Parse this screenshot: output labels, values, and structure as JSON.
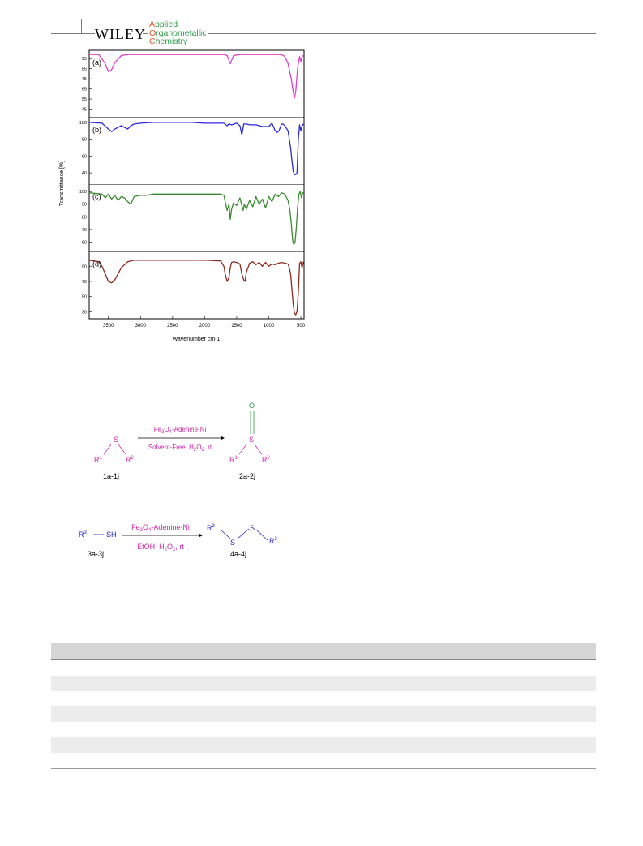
{
  "header": {
    "publisher": "WILEY",
    "journal": [
      {
        "initial": "A",
        "rest": "pplied"
      },
      {
        "initial": "O",
        "rest": "rganometallic"
      },
      {
        "initial": "C",
        "rest": "hemistry"
      }
    ]
  },
  "chart_data": {
    "type": "line",
    "xlabel": "Wavenumber cm-1",
    "ylabel": "Transmittance [%]",
    "xticks": [
      3500,
      3000,
      2500,
      2000,
      1500,
      1000,
      500
    ],
    "xlim": [
      3800,
      450
    ],
    "panels": [
      {
        "label": "(a)",
        "color": "#e040c8",
        "yticks": [
          95,
          85,
          75,
          65,
          55,
          45
        ],
        "ylim": [
          40,
          100
        ],
        "x": [
          3800,
          3650,
          3550,
          3500,
          3450,
          3400,
          3300,
          3200,
          1700,
          1650,
          1600,
          1550,
          1450,
          800,
          750,
          700,
          650,
          620,
          600,
          580,
          550,
          520,
          500,
          480,
          460
        ],
        "y": [
          99,
          99,
          90,
          82,
          84,
          91,
          98,
          99,
          99,
          98,
          90,
          98,
          99,
          99,
          97,
          90,
          75,
          62,
          56,
          62,
          86,
          97,
          92,
          97,
          98
        ]
      },
      {
        "label": "(b)",
        "color": "#2a2ad8",
        "yticks": [
          100,
          80,
          60,
          40
        ],
        "ylim": [
          30,
          102
        ],
        "x": [
          3800,
          3600,
          3500,
          3450,
          3400,
          3300,
          3200,
          3150,
          3100,
          3000,
          2800,
          2500,
          2200,
          2000,
          1700,
          1650,
          1620,
          1580,
          1500,
          1450,
          1420,
          1390,
          1350,
          1300,
          1200,
          1100,
          1000,
          950,
          900,
          870,
          840,
          800,
          780,
          750,
          700,
          660,
          640,
          620,
          600,
          580,
          560,
          540,
          520,
          500,
          480,
          460
        ],
        "y": [
          100,
          99,
          92,
          89,
          92,
          96,
          92,
          96,
          98,
          99,
          100,
          100,
          100,
          99,
          99,
          96,
          98,
          97,
          99,
          96,
          85,
          98,
          98,
          97,
          97,
          95,
          95,
          99,
          90,
          88,
          90,
          98,
          98,
          96,
          90,
          70,
          55,
          42,
          38,
          38,
          40,
          80,
          97,
          90,
          96,
          98
        ]
      },
      {
        "label": "(c)",
        "color": "#3a8a30",
        "yticks": [
          100,
          90,
          80,
          70,
          60
        ],
        "ylim": [
          55,
          103
        ],
        "x": [
          3800,
          3600,
          3550,
          3500,
          3450,
          3400,
          3350,
          3300,
          3250,
          3200,
          3150,
          3100,
          3000,
          2900,
          2800,
          2600,
          2400,
          2200,
          2000,
          1750,
          1700,
          1680,
          1650,
          1620,
          1600,
          1580,
          1550,
          1500,
          1450,
          1400,
          1380,
          1350,
          1300,
          1250,
          1200,
          1150,
          1100,
          1050,
          1000,
          950,
          900,
          850,
          800,
          750,
          700,
          670,
          650,
          630,
          610,
          590,
          570,
          550,
          530,
          510,
          490,
          470,
          460
        ],
        "y": [
          99,
          98,
          95,
          98,
          94,
          97,
          93,
          96,
          95,
          92,
          90,
          96,
          97,
          97,
          98,
          98,
          98,
          98,
          98,
          98,
          97,
          92,
          85,
          90,
          78,
          86,
          91,
          89,
          95,
          85,
          90,
          86,
          93,
          88,
          96,
          90,
          94,
          87,
          96,
          92,
          98,
          96,
          99,
          98,
          93,
          85,
          75,
          62,
          58,
          60,
          72,
          88,
          98,
          100,
          95,
          99,
          99
        ]
      },
      {
        "label": "(d)",
        "color": "#8a2a22",
        "yticks": [
          90,
          70,
          50,
          30
        ],
        "ylim": [
          25,
          105
        ],
        "x": [
          3800,
          3650,
          3600,
          3550,
          3500,
          3450,
          3400,
          3350,
          3300,
          3200,
          3100,
          3000,
          2800,
          2500,
          2200,
          2000,
          1750,
          1700,
          1680,
          1650,
          1620,
          1600,
          1580,
          1550,
          1500,
          1450,
          1420,
          1390,
          1370,
          1350,
          1300,
          1250,
          1200,
          1150,
          1100,
          1050,
          1000,
          950,
          900,
          850,
          800,
          750,
          700,
          680,
          660,
          640,
          620,
          600,
          580,
          560,
          540,
          520,
          500,
          480,
          460
        ],
        "y": [
          98,
          96,
          90,
          80,
          70,
          68,
          72,
          80,
          88,
          96,
          98,
          98,
          98,
          98,
          98,
          98,
          97,
          90,
          80,
          70,
          75,
          88,
          95,
          96,
          95,
          93,
          80,
          72,
          70,
          82,
          94,
          96,
          92,
          95,
          90,
          95,
          90,
          93,
          92,
          94,
          95,
          94,
          93,
          88,
          80,
          60,
          40,
          28,
          26,
          30,
          55,
          94,
          96,
          88,
          96
        ]
      }
    ]
  },
  "schemes": {
    "scheme1": {
      "catalyst": "Fe3O4-Adenine-Ni",
      "conditions": "Solvent-Free, H2O2, rt",
      "reactant_label": "1a-1j",
      "product_label": "2a-2j",
      "atom_s": "S",
      "atom_o": "O",
      "r1": "R",
      "r2": "R",
      "sup1": "1",
      "sup2": "2"
    },
    "scheme2": {
      "catalyst": "Fe3O4-Adenine-Ni",
      "conditions": "EtOH, H2O2, rt",
      "reactant_label": "3a-3j",
      "product_label": "4a-4j",
      "r3": "R",
      "sup3": "3",
      "sh": "SH",
      "atom_s": "S"
    }
  },
  "colors": {
    "magenta": "#cc2aa8",
    "blue": "#2222cc",
    "green": "#2e9a49",
    "orange": "#e2542a"
  }
}
